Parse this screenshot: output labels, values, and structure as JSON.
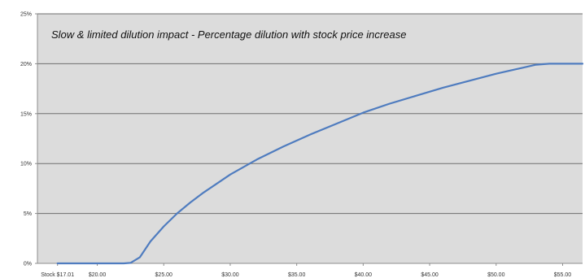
{
  "chart_data": {
    "type": "line",
    "title": "Slow & limited dilution impact - Percentage dilution with stock price increase",
    "xlabel": "",
    "ylabel": "",
    "xlim": [
      15.5,
      56.5
    ],
    "ylim": [
      0,
      25
    ],
    "x_tick_values": [
      17.01,
      20,
      25,
      30,
      35,
      40,
      45,
      50,
      55
    ],
    "x_tick_labels": [
      "Stock $17.01",
      "$20.00",
      "$25.00",
      "$30.00",
      "$35.00",
      "$40.00",
      "$45.00",
      "$50.00",
      "$55.00"
    ],
    "y_tick_values": [
      0,
      5,
      10,
      15,
      20,
      25
    ],
    "y_tick_labels": [
      "0%",
      "5%",
      "10%",
      "15%",
      "20%",
      "25%"
    ],
    "grid": "horizontal",
    "legend": "none",
    "series": [
      {
        "color": "#4f7cbf",
        "x": [
          17.01,
          18,
          19,
          20,
          21,
          22,
          22.5,
          23.2,
          24,
          25,
          26,
          27,
          28,
          29,
          30,
          32,
          34,
          36,
          38,
          40,
          42,
          44,
          46,
          48,
          50,
          52,
          53,
          54,
          55,
          56.5
        ],
        "y": [
          0,
          0,
          0,
          0,
          0,
          0,
          0.05,
          0.6,
          2.2,
          3.7,
          5.0,
          6.1,
          7.1,
          8.0,
          8.9,
          10.4,
          11.7,
          12.9,
          14.0,
          15.1,
          16.0,
          16.8,
          17.6,
          18.3,
          19.0,
          19.6,
          19.9,
          20.0,
          20.0,
          20.0
        ]
      }
    ]
  },
  "colors": {
    "plot_background": "#dcdcdc",
    "gridline": "#6e6e6e",
    "axis": "#8c8c8c",
    "line": "#4f7cbf"
  }
}
